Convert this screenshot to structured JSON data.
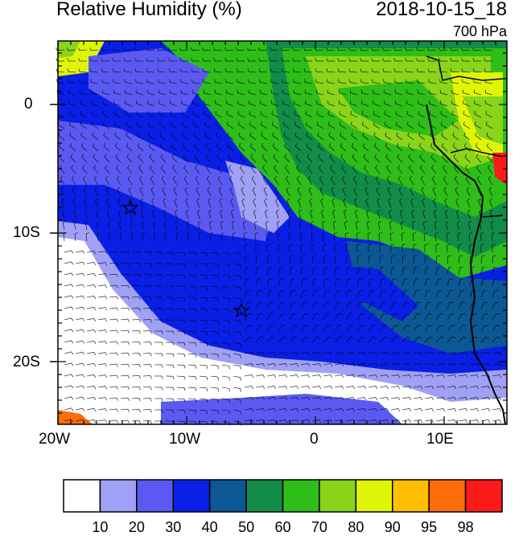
{
  "header": {
    "title_left": "Relative Humidity (%)",
    "title_right": "2018-10-15_18",
    "subtitle": "700 hPa"
  },
  "axes": {
    "x_ticks": [
      "20W",
      "10W",
      "0",
      "10E"
    ],
    "y_ticks": [
      "0",
      "10S",
      "20S"
    ]
  },
  "colorbar": {
    "colors": [
      "#ffffff",
      "#a0a0f6",
      "#5a5af2",
      "#0a1fe6",
      "#0c5894",
      "#128c48",
      "#2fbd19",
      "#8ad41a",
      "#e0f506",
      "#ffbf00",
      "#ff6d0b",
      "#ff1a1a"
    ],
    "labels": [
      "10",
      "20",
      "30",
      "40",
      "50",
      "60",
      "70",
      "80",
      "90",
      "95",
      "98"
    ]
  },
  "map": {
    "markers": [
      "star-marker",
      "star-marker"
    ]
  }
}
